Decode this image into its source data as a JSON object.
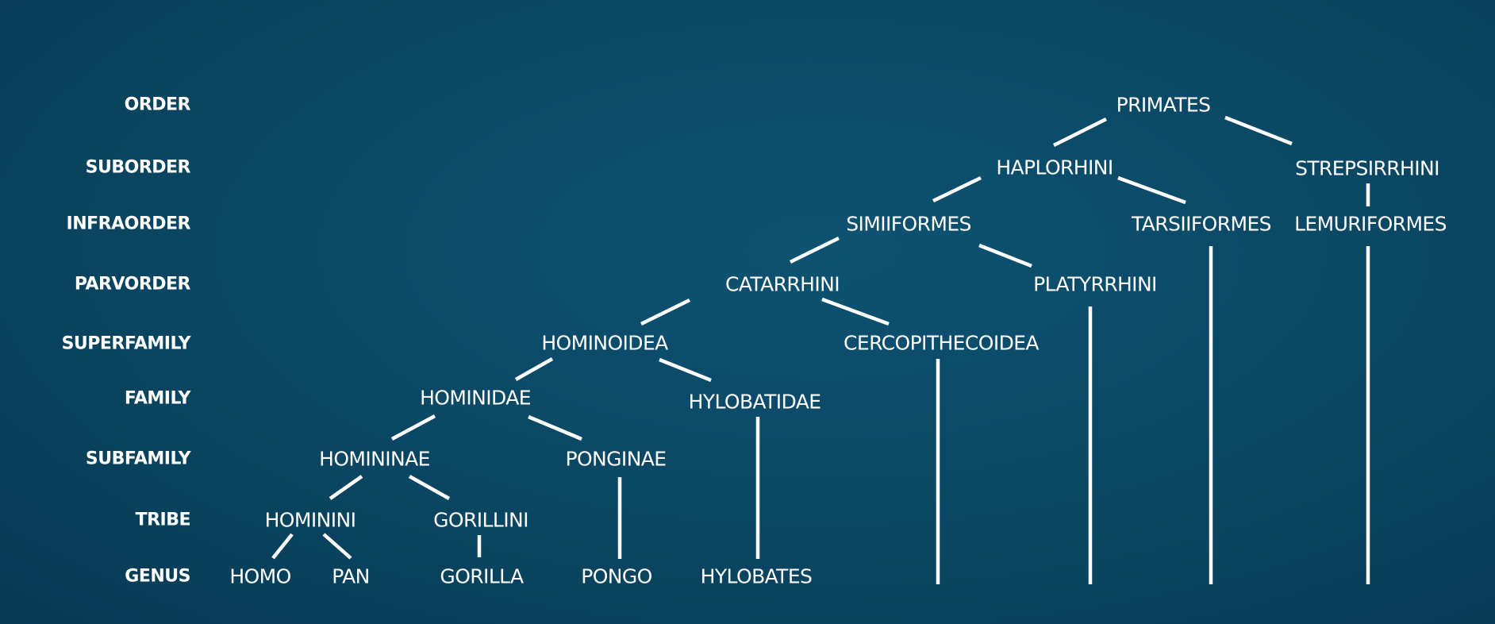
{
  "ranks": {
    "order": "ORDER",
    "suborder": "SUBORDER",
    "infraorder": "INFRAORDER",
    "parvorder": "PARVORDER",
    "superfamily": "SUPERFAMILY",
    "family": "FAMILY",
    "subfamily": "SUBFAMILY",
    "tribe": "TRIBE",
    "genus": "GENUS"
  },
  "taxa": {
    "primates": "PRIMATES",
    "haplorhini": "HAPLORHINI",
    "strepsirrhini": "STREPSIRRHINI",
    "simiiformes": "SIMIIFORMES",
    "tarsiiformes": "TARSIIFORMES",
    "lemuriformes": "LEMURIFORMES",
    "catarrhini": "CATARRHINI",
    "platyrrhini": "PLATYRRHINI",
    "hominoidea": "HOMINOIDEA",
    "cercopithecoidea": "CERCOPITHECOIDEA",
    "hominidae": "HOMINIDAE",
    "hylobatidae": "HYLOBATIDAE",
    "homininae": "HOMININAE",
    "ponginae": "PONGINAE",
    "hominini": "HOMININI",
    "gorillini": "GORILLINI",
    "homo": "HOMO",
    "pan": "PAN",
    "gorilla": "GORILLA",
    "pongo": "PONGO",
    "hylobates": "HYLOBATES"
  }
}
